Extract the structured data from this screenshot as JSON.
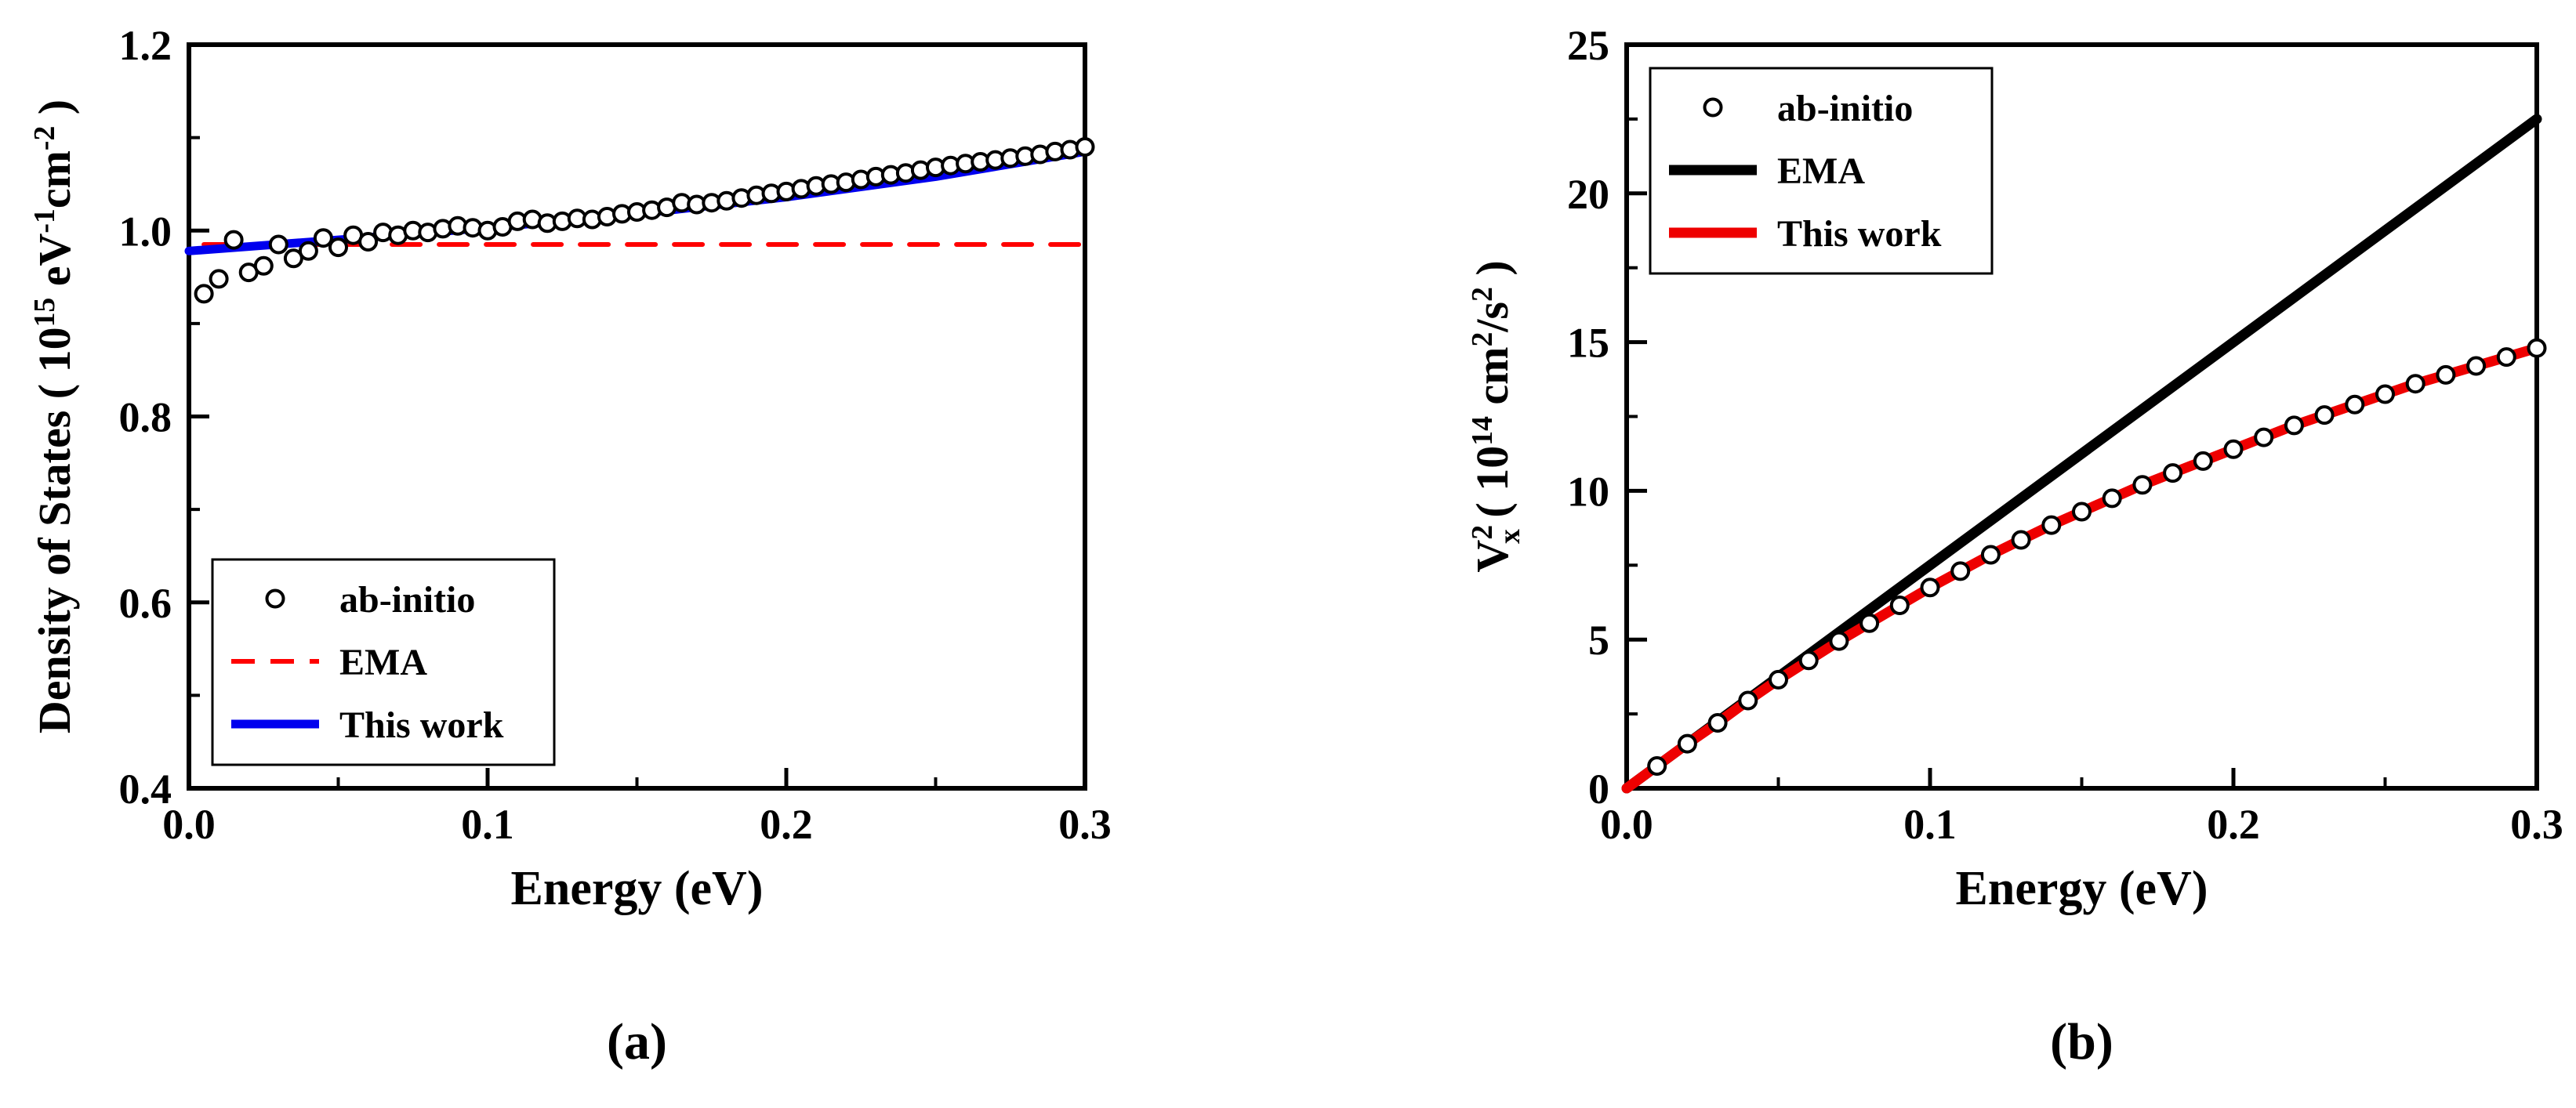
{
  "figure": {
    "background": "#ffffff"
  },
  "chart_data": [
    {
      "id": "a",
      "type": "line",
      "caption": "(a)",
      "xlabel": "Energy (eV)",
      "ylabel": "Density of States ( 10^15 eV^-1 cm^-2 )",
      "ylabel_parts": [
        {
          "t": "Density of States ( 10"
        },
        {
          "t": "15",
          "pos": "sup"
        },
        {
          "t": " eV",
          "pos": ""
        },
        {
          "t": "-1",
          "pos": "sup"
        },
        {
          "t": "cm",
          "pos": ""
        },
        {
          "t": "-2",
          "pos": "sup"
        },
        {
          "t": " )",
          "pos": ""
        }
      ],
      "xlim": [
        0.0,
        0.3
      ],
      "ylim": [
        0.4,
        1.2
      ],
      "xtick_values": [
        0.0,
        0.1,
        0.2,
        0.3
      ],
      "xtick_labels": [
        "0.0",
        "0.1",
        "0.2",
        "0.3"
      ],
      "ytick_values": [
        0.4,
        0.6,
        0.8,
        1.0,
        1.2
      ],
      "ytick_labels": [
        "0.4",
        "0.6",
        "0.8",
        "1.0",
        "1.2"
      ],
      "xticks_minor": [
        0.05,
        0.15,
        0.25
      ],
      "yticks_minor": [
        0.5,
        0.7,
        0.9,
        1.1
      ],
      "grid": false,
      "legend_position": "bottom-left",
      "series": [
        {
          "name": "ab-initio",
          "kind": "scatter",
          "marker": "open-circle",
          "color": "#000000",
          "points": [
            [
              0.005,
              0.932
            ],
            [
              0.01,
              0.948
            ],
            [
              0.015,
              0.99
            ],
            [
              0.02,
              0.955
            ],
            [
              0.025,
              0.962
            ],
            [
              0.03,
              0.985
            ],
            [
              0.035,
              0.97
            ],
            [
              0.04,
              0.978
            ],
            [
              0.045,
              0.992
            ],
            [
              0.05,
              0.982
            ],
            [
              0.055,
              0.995
            ],
            [
              0.06,
              0.988
            ],
            [
              0.065,
              0.998
            ],
            [
              0.07,
              0.995
            ],
            [
              0.075,
              1.0
            ],
            [
              0.08,
              0.998
            ],
            [
              0.085,
              1.002
            ],
            [
              0.09,
              1.005
            ],
            [
              0.095,
              1.003
            ],
            [
              0.1,
              1.0
            ],
            [
              0.105,
              1.004
            ],
            [
              0.11,
              1.01
            ],
            [
              0.115,
              1.012
            ],
            [
              0.12,
              1.008
            ],
            [
              0.125,
              1.01
            ],
            [
              0.13,
              1.013
            ],
            [
              0.135,
              1.012
            ],
            [
              0.14,
              1.015
            ],
            [
              0.145,
              1.018
            ],
            [
              0.15,
              1.02
            ],
            [
              0.155,
              1.022
            ],
            [
              0.16,
              1.025
            ],
            [
              0.165,
              1.03
            ],
            [
              0.17,
              1.028
            ],
            [
              0.175,
              1.03
            ],
            [
              0.18,
              1.032
            ],
            [
              0.185,
              1.035
            ],
            [
              0.19,
              1.038
            ],
            [
              0.195,
              1.04
            ],
            [
              0.2,
              1.042
            ],
            [
              0.205,
              1.045
            ],
            [
              0.21,
              1.048
            ],
            [
              0.215,
              1.05
            ],
            [
              0.22,
              1.052
            ],
            [
              0.225,
              1.055
            ],
            [
              0.23,
              1.058
            ],
            [
              0.235,
              1.06
            ],
            [
              0.24,
              1.062
            ],
            [
              0.245,
              1.065
            ],
            [
              0.25,
              1.068
            ],
            [
              0.255,
              1.07
            ],
            [
              0.26,
              1.072
            ],
            [
              0.265,
              1.074
            ],
            [
              0.27,
              1.076
            ],
            [
              0.275,
              1.078
            ],
            [
              0.28,
              1.08
            ],
            [
              0.285,
              1.082
            ],
            [
              0.29,
              1.085
            ],
            [
              0.295,
              1.087
            ],
            [
              0.3,
              1.09
            ]
          ]
        },
        {
          "name": "EMA",
          "kind": "line",
          "dash": "dashed",
          "color": "#ff0000",
          "width": 6,
          "points": [
            [
              0.005,
              0.985
            ],
            [
              0.3,
              0.985
            ]
          ]
        },
        {
          "name": "This work",
          "kind": "line",
          "dash": "solid",
          "color": "#0000ee",
          "width": 11,
          "points": [
            [
              0.0,
              0.978
            ],
            [
              0.05,
              0.99
            ],
            [
              0.1,
              1.003
            ],
            [
              0.15,
              1.018
            ],
            [
              0.2,
              1.036
            ],
            [
              0.25,
              1.058
            ],
            [
              0.3,
              1.085
            ]
          ]
        }
      ]
    },
    {
      "id": "b",
      "type": "line",
      "caption": "(b)",
      "xlabel": "Energy (eV)",
      "ylabel": "V^2_x ( 10^14 cm^2/s^2 )",
      "ylabel_parts": [
        {
          "t": "V",
          "pos": ""
        },
        {
          "t": "2",
          "pos": "sup"
        },
        {
          "t": "x",
          "pos": "sub",
          "dx": -24
        },
        {
          "t": "  ( 10",
          "pos": ""
        },
        {
          "t": "14",
          "pos": "sup"
        },
        {
          "t": " cm",
          "pos": ""
        },
        {
          "t": "2",
          "pos": "sup"
        },
        {
          "t": "/s",
          "pos": ""
        },
        {
          "t": "2",
          "pos": "sup"
        },
        {
          "t": " )",
          "pos": ""
        }
      ],
      "xlim": [
        0.0,
        0.3
      ],
      "ylim": [
        0,
        25
      ],
      "xtick_values": [
        0.0,
        0.1,
        0.2,
        0.3
      ],
      "xtick_labels": [
        "0.0",
        "0.1",
        "0.2",
        "0.3"
      ],
      "ytick_values": [
        0,
        5,
        10,
        15,
        20,
        25
      ],
      "ytick_labels": [
        "0",
        "5",
        "10",
        "15",
        "20",
        "25"
      ],
      "xticks_minor": [
        0.05,
        0.15,
        0.25
      ],
      "yticks_minor": [
        2.5,
        7.5,
        12.5,
        17.5,
        22.5
      ],
      "grid": false,
      "legend_position": "top-left",
      "series": [
        {
          "name": "ab-initio",
          "kind": "scatter",
          "marker": "open-circle",
          "color": "#000000",
          "points": [
            [
              0.01,
              0.75
            ],
            [
              0.02,
              1.5
            ],
            [
              0.03,
              2.2
            ],
            [
              0.04,
              2.95
            ],
            [
              0.05,
              3.65
            ],
            [
              0.06,
              4.3
            ],
            [
              0.07,
              4.95
            ],
            [
              0.08,
              5.55
            ],
            [
              0.09,
              6.15
            ],
            [
              0.1,
              6.75
            ],
            [
              0.11,
              7.3
            ],
            [
              0.12,
              7.85
            ],
            [
              0.13,
              8.35
            ],
            [
              0.14,
              8.85
            ],
            [
              0.15,
              9.3
            ],
            [
              0.16,
              9.75
            ],
            [
              0.17,
              10.2
            ],
            [
              0.18,
              10.6
            ],
            [
              0.19,
              11.0
            ],
            [
              0.2,
              11.4
            ],
            [
              0.21,
              11.8
            ],
            [
              0.22,
              12.2
            ],
            [
              0.23,
              12.55
            ],
            [
              0.24,
              12.9
            ],
            [
              0.25,
              13.25
            ],
            [
              0.26,
              13.6
            ],
            [
              0.27,
              13.9
            ],
            [
              0.28,
              14.2
            ],
            [
              0.29,
              14.5
            ],
            [
              0.3,
              14.8
            ]
          ]
        },
        {
          "name": "EMA",
          "kind": "line",
          "dash": "solid",
          "color": "#000000",
          "width": 13,
          "points": [
            [
              0.0,
              0.0
            ],
            [
              0.3,
              22.5
            ]
          ]
        },
        {
          "name": "This work",
          "kind": "line",
          "dash": "solid",
          "color": "#ee0000",
          "width": 13,
          "points": [
            [
              0.0,
              0.0
            ],
            [
              0.01,
              0.75
            ],
            [
              0.02,
              1.5
            ],
            [
              0.03,
              2.2
            ],
            [
              0.04,
              2.95
            ],
            [
              0.05,
              3.65
            ],
            [
              0.06,
              4.3
            ],
            [
              0.07,
              4.95
            ],
            [
              0.08,
              5.55
            ],
            [
              0.09,
              6.15
            ],
            [
              0.1,
              6.75
            ],
            [
              0.11,
              7.3
            ],
            [
              0.12,
              7.85
            ],
            [
              0.13,
              8.35
            ],
            [
              0.14,
              8.85
            ],
            [
              0.15,
              9.3
            ],
            [
              0.16,
              9.75
            ],
            [
              0.17,
              10.2
            ],
            [
              0.18,
              10.6
            ],
            [
              0.19,
              11.0
            ],
            [
              0.2,
              11.4
            ],
            [
              0.21,
              11.8
            ],
            [
              0.22,
              12.2
            ],
            [
              0.23,
              12.55
            ],
            [
              0.24,
              12.9
            ],
            [
              0.25,
              13.25
            ],
            [
              0.26,
              13.6
            ],
            [
              0.27,
              13.9
            ],
            [
              0.28,
              14.2
            ],
            [
              0.29,
              14.5
            ],
            [
              0.3,
              14.8
            ]
          ]
        }
      ]
    }
  ]
}
